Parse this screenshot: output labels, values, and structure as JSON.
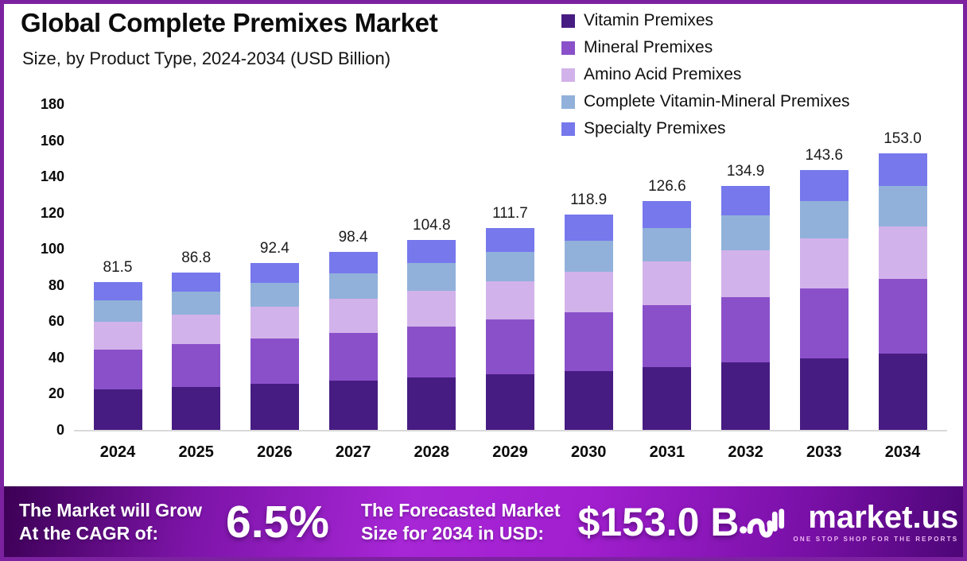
{
  "chart_data": {
    "type": "bar",
    "stacked": true,
    "title": "Global Complete Premixes Market",
    "subtitle": "Size, by Product Type, 2024-2034 (USD Billion)",
    "categories": [
      "2024",
      "2025",
      "2026",
      "2027",
      "2028",
      "2029",
      "2030",
      "2031",
      "2032",
      "2033",
      "2034"
    ],
    "totals": [
      "81.5",
      "86.8",
      "92.4",
      "98.4",
      "104.8",
      "111.7",
      "118.9",
      "126.6",
      "134.9",
      "143.6",
      "153.0"
    ],
    "series": [
      {
        "name": "Vitamin Premixes",
        "color": "#471c82",
        "values": [
          22.4,
          23.9,
          25.4,
          27.1,
          28.8,
          30.7,
          32.7,
          34.8,
          37.1,
          39.5,
          42.1
        ]
      },
      {
        "name": "Mineral Premixes",
        "color": "#8a50c9",
        "values": [
          22.0,
          23.4,
          24.9,
          26.6,
          28.3,
          30.2,
          32.1,
          34.2,
          36.4,
          38.8,
          41.3
        ]
      },
      {
        "name": "Amino Acid Premixes",
        "color": "#d2b2ea",
        "values": [
          15.5,
          16.5,
          17.6,
          18.7,
          19.9,
          21.2,
          22.6,
          24.1,
          25.6,
          27.3,
          29.1
        ]
      },
      {
        "name": "Complete Vitamin-Mineral Premixes",
        "color": "#91b1da",
        "values": [
          11.8,
          12.6,
          13.4,
          14.3,
          15.2,
          16.2,
          17.2,
          18.4,
          19.6,
          20.8,
          22.2
        ]
      },
      {
        "name": "Specialty Premixes",
        "color": "#7678ec",
        "values": [
          9.8,
          10.4,
          11.1,
          11.7,
          12.6,
          13.4,
          14.3,
          15.1,
          16.2,
          17.2,
          18.3
        ]
      }
    ],
    "yticks": [
      0,
      20,
      40,
      60,
      80,
      100,
      120,
      140,
      160,
      180
    ],
    "ylim": [
      0,
      180
    ],
    "xlabel": "",
    "ylabel": "",
    "grid": false,
    "legend_position": "top-right"
  },
  "banner": {
    "cagr_label_line1": "The Market will Grow",
    "cagr_label_line2": "At the CAGR of:",
    "cagr_value": "6.5%",
    "forecast_label_line1": "The Forecasted Market",
    "forecast_label_line2": "Size for 2034 in USD:",
    "forecast_value": "$153.0 B",
    "brand": "market.us",
    "brand_tagline": "ONE STOP SHOP FOR THE REPORTS"
  },
  "colors": {
    "frame_border": "#7c22a0",
    "axis_line": "#d9d9d9",
    "banner_gradient_left": "#3c0055",
    "banner_gradient_center": "#a726d6",
    "banner_gradient_right": "#4d0677"
  }
}
